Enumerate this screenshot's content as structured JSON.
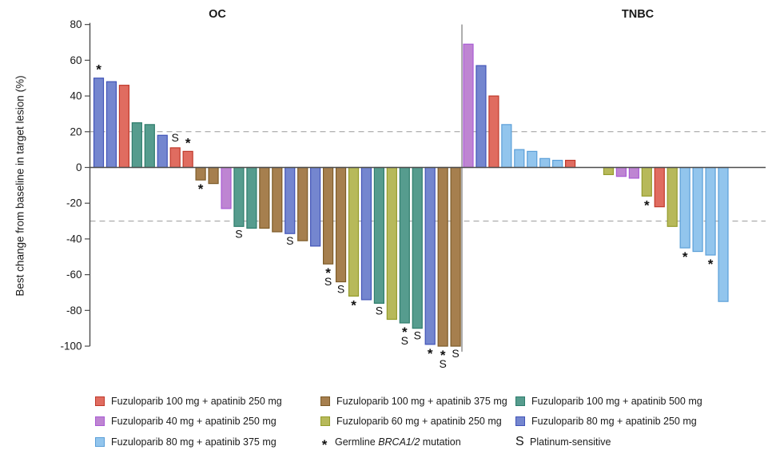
{
  "figure_title": "",
  "palette": {
    "red": {
      "name": "Fuzuloparib 100 mg + apatinib 250 mg",
      "fill": "#E06C60",
      "stroke": "#C0392B"
    },
    "purple": {
      "name": "Fuzuloparib 40 mg + apatinib 250 mg",
      "fill": "#BE85D2",
      "stroke": "#A95CD4"
    },
    "sky": {
      "name": "Fuzuloparib 80 mg + apatinib 375 mg",
      "fill": "#92C5ED",
      "stroke": "#5B9FD8"
    },
    "brown": {
      "name": "Fuzuloparib 100 mg + apatinib 375 mg",
      "fill": "#A67F4E",
      "stroke": "#7D5B28"
    },
    "olive": {
      "name": "Fuzuloparib 60 mg + apatinib 250 mg",
      "fill": "#B7B95A",
      "stroke": "#949C2B"
    },
    "teal": {
      "name": "Fuzuloparib 100 mg + apatinib 500 mg",
      "fill": "#569C8E",
      "stroke": "#2E7D6C"
    },
    "blue": {
      "name": "Fuzuloparib 80 mg + apatinib 250 mg",
      "fill": "#7486CF",
      "stroke": "#4254B8"
    }
  },
  "chart_data": {
    "type": "bar",
    "subtype": "waterfall",
    "ylabel": "Best change from baseline in target lesion (%)",
    "ylim": [
      -100,
      80
    ],
    "yticks": [
      80,
      60,
      40,
      20,
      0,
      -20,
      -40,
      -60,
      -80,
      -100
    ],
    "reference_lines": [
      20,
      -30
    ],
    "grid": "dashed-reference-only",
    "marker_legend": {
      "*": "Germline BRCA1/2 mutation",
      "S": "Platinum-sensitive"
    },
    "groups": [
      {
        "label": "OC",
        "bars": [
          {
            "value": 50,
            "color": "blue",
            "markers": [
              "*"
            ]
          },
          {
            "value": 48,
            "color": "blue"
          },
          {
            "value": 46,
            "color": "red"
          },
          {
            "value": 25,
            "color": "teal"
          },
          {
            "value": 24,
            "color": "teal"
          },
          {
            "value": 18,
            "color": "blue"
          },
          {
            "value": 11,
            "color": "red",
            "markers": [
              "S"
            ]
          },
          {
            "value": 9,
            "color": "red",
            "markers": [
              "*"
            ]
          },
          {
            "value": -7,
            "color": "brown",
            "markers": [
              "*"
            ]
          },
          {
            "value": -9,
            "color": "brown"
          },
          {
            "value": -23,
            "color": "purple"
          },
          {
            "value": -33,
            "color": "teal",
            "markers": [
              "S"
            ]
          },
          {
            "value": -34,
            "color": "teal"
          },
          {
            "value": -34,
            "color": "brown"
          },
          {
            "value": -36,
            "color": "brown"
          },
          {
            "value": -37,
            "color": "blue",
            "markers": [
              "S"
            ]
          },
          {
            "value": -41,
            "color": "brown"
          },
          {
            "value": -44,
            "color": "blue"
          },
          {
            "value": -54,
            "color": "brown",
            "markers": [
              "*",
              "S"
            ]
          },
          {
            "value": -64,
            "color": "brown",
            "markers": [
              "S"
            ]
          },
          {
            "value": -72,
            "color": "olive",
            "markers": [
              "*"
            ]
          },
          {
            "value": -74,
            "color": "blue"
          },
          {
            "value": -76,
            "color": "teal",
            "markers": [
              "S"
            ]
          },
          {
            "value": -85,
            "color": "olive"
          },
          {
            "value": -87,
            "color": "teal",
            "markers": [
              "*",
              "S"
            ]
          },
          {
            "value": -90,
            "color": "teal",
            "markers": [
              "S"
            ]
          },
          {
            "value": -99,
            "color": "blue",
            "markers": [
              "*"
            ]
          },
          {
            "value": -100,
            "color": "brown",
            "markers": [
              "*",
              "S"
            ]
          },
          {
            "value": -100,
            "color": "brown",
            "markers": [
              "S"
            ]
          }
        ]
      },
      {
        "label": "TNBC",
        "bars": [
          {
            "value": 69,
            "color": "purple"
          },
          {
            "value": 57,
            "color": "blue"
          },
          {
            "value": 40,
            "color": "red"
          },
          {
            "value": 24,
            "color": "sky"
          },
          {
            "value": 10,
            "color": "sky"
          },
          {
            "value": 9,
            "color": "sky"
          },
          {
            "value": 5,
            "color": "sky"
          },
          {
            "value": 4,
            "color": "sky"
          },
          {
            "value": 4,
            "color": "red"
          },
          {
            "value": -4,
            "color": "olive",
            "gap_before": 2
          },
          {
            "value": -5,
            "color": "purple"
          },
          {
            "value": -6,
            "color": "purple"
          },
          {
            "value": -16,
            "color": "olive",
            "markers": [
              "*"
            ]
          },
          {
            "value": -22,
            "color": "red"
          },
          {
            "value": -33,
            "color": "olive"
          },
          {
            "value": -45,
            "color": "sky",
            "markers": [
              "*"
            ]
          },
          {
            "value": -47,
            "color": "sky"
          },
          {
            "value": -49,
            "color": "sky",
            "markers": [
              "*"
            ]
          },
          {
            "value": -75,
            "color": "sky"
          }
        ]
      }
    ]
  },
  "legend": {
    "columns": [
      {
        "items": [
          {
            "swatch": "red",
            "label": "Fuzuloparib 100 mg + apatinib 250 mg"
          },
          {
            "swatch": "purple",
            "label": "Fuzuloparib 40 mg + apatinib 250 mg"
          },
          {
            "swatch": "sky",
            "label": "Fuzuloparib 80 mg + apatinib 375 mg"
          }
        ]
      },
      {
        "items": [
          {
            "swatch": "brown",
            "label": "Fuzuloparib 100 mg + apatinib 375 mg"
          },
          {
            "swatch": "olive",
            "label": "Fuzuloparib 60 mg + apatinib 250 mg"
          },
          {
            "symbol": "*",
            "parts": [
              {
                "text": "Germline "
              },
              {
                "text": "BRCA1/2",
                "italic": true
              },
              {
                "text": " mutation"
              }
            ]
          }
        ]
      },
      {
        "items": [
          {
            "swatch": "teal",
            "label": "Fuzuloparib 100 mg + apatinib 500 mg"
          },
          {
            "swatch": "blue",
            "label": "Fuzuloparib 80 mg + apatinib 250 mg"
          },
          {
            "symbol": "S",
            "label": "Platinum-sensitive"
          }
        ]
      }
    ]
  }
}
